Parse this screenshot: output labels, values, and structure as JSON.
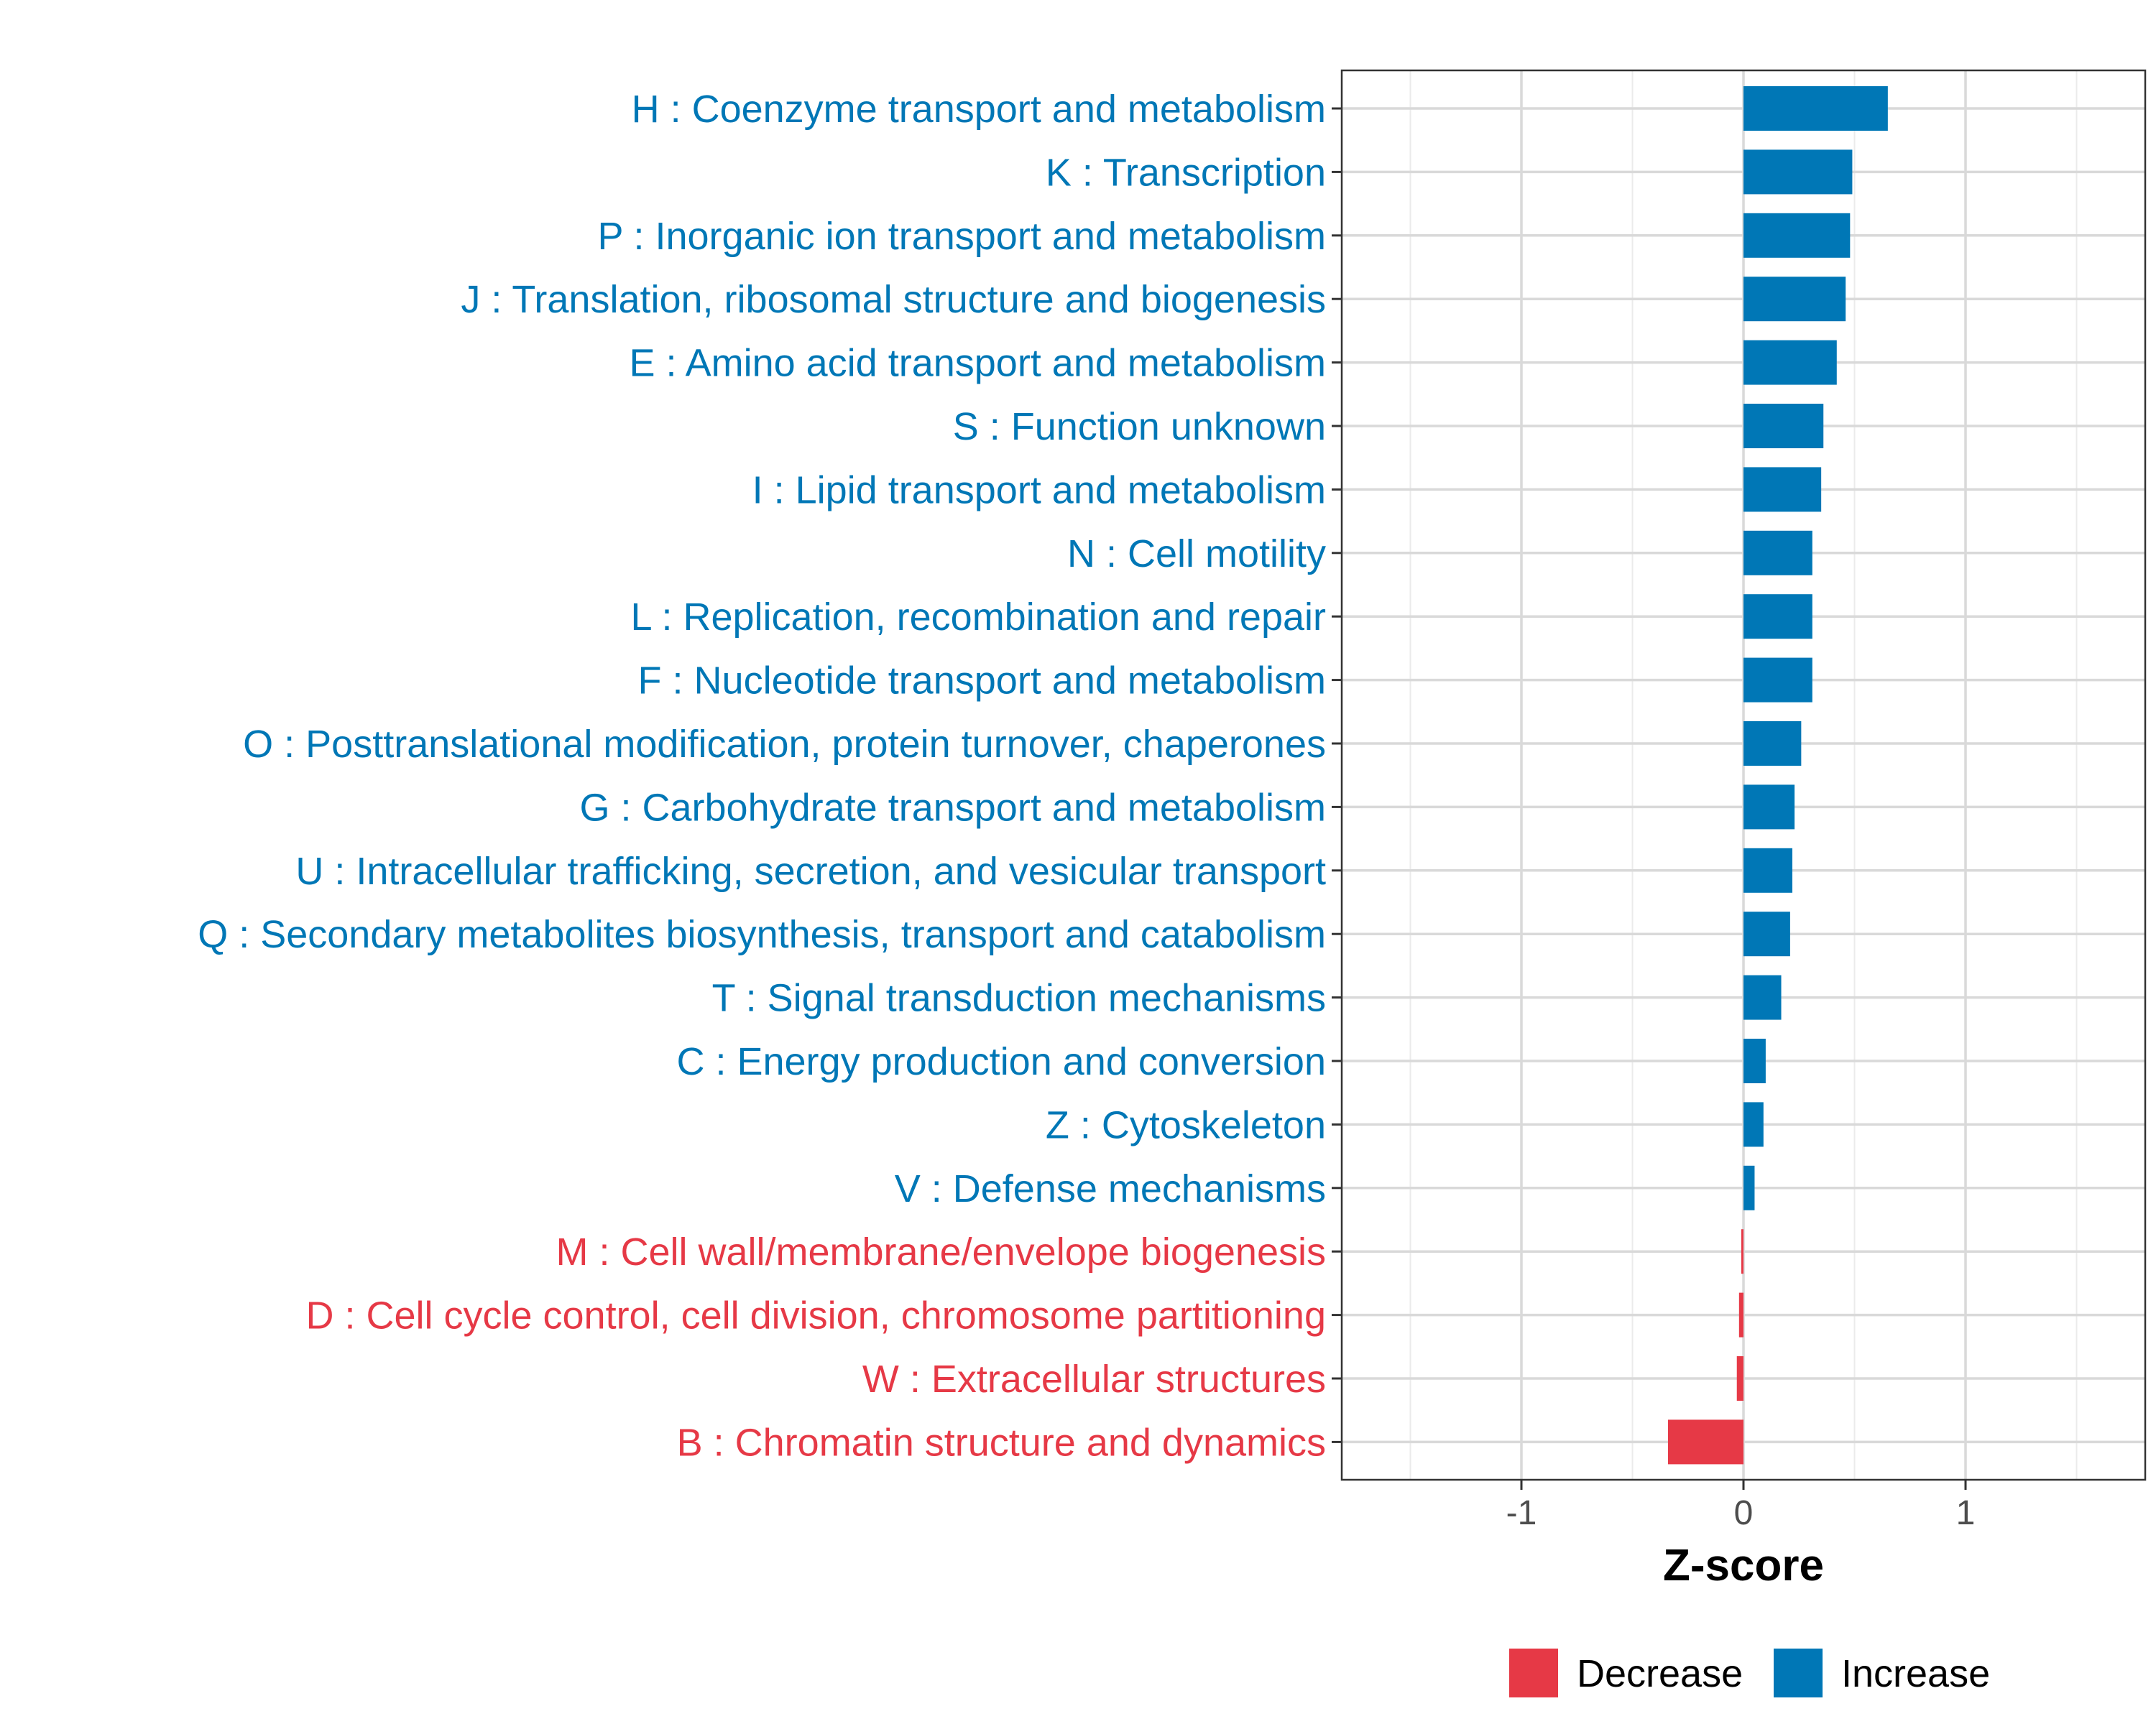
{
  "chart_data": {
    "type": "bar",
    "orientation": "horizontal",
    "title": "",
    "xlabel": "Z-score",
    "ylabel": "",
    "xlim": [
      -1.8,
      1.8
    ],
    "xticks": [
      -1,
      0,
      1
    ],
    "xtick_labels": [
      "-1",
      "0",
      "1"
    ],
    "grid": true,
    "legend_position": "bottom",
    "colors": {
      "Decrease": "#e63946",
      "Increase": "#0077b6"
    },
    "legend": [
      {
        "label": "Decrease",
        "color": "#e63946"
      },
      {
        "label": "Increase",
        "color": "#0077b6"
      }
    ],
    "bars": [
      {
        "category": "H : Coenzyme transport and metabolism",
        "value": 0.65,
        "direction": "Increase"
      },
      {
        "category": "K : Transcription",
        "value": 0.49,
        "direction": "Increase"
      },
      {
        "category": "P : Inorganic ion transport and metabolism",
        "value": 0.48,
        "direction": "Increase"
      },
      {
        "category": "J : Translation, ribosomal structure and biogenesis",
        "value": 0.46,
        "direction": "Increase"
      },
      {
        "category": "E : Amino acid transport and metabolism",
        "value": 0.42,
        "direction": "Increase"
      },
      {
        "category": "S : Function unknown",
        "value": 0.36,
        "direction": "Increase"
      },
      {
        "category": "I : Lipid transport and metabolism",
        "value": 0.35,
        "direction": "Increase"
      },
      {
        "category": "N : Cell motility",
        "value": 0.31,
        "direction": "Increase"
      },
      {
        "category": "L : Replication, recombination and repair",
        "value": 0.31,
        "direction": "Increase"
      },
      {
        "category": "F : Nucleotide transport and metabolism",
        "value": 0.31,
        "direction": "Increase"
      },
      {
        "category": "O : Posttranslational modification, protein turnover, chaperones",
        "value": 0.26,
        "direction": "Increase"
      },
      {
        "category": "G : Carbohydrate transport and metabolism",
        "value": 0.23,
        "direction": "Increase"
      },
      {
        "category": "U : Intracellular trafficking, secretion, and vesicular transport",
        "value": 0.22,
        "direction": "Increase"
      },
      {
        "category": "Q : Secondary metabolites biosynthesis, transport and catabolism",
        "value": 0.21,
        "direction": "Increase"
      },
      {
        "category": "T : Signal transduction mechanisms",
        "value": 0.17,
        "direction": "Increase"
      },
      {
        "category": "C : Energy production and conversion",
        "value": 0.1,
        "direction": "Increase"
      },
      {
        "category": "Z : Cytoskeleton",
        "value": 0.09,
        "direction": "Increase"
      },
      {
        "category": "V : Defense mechanisms",
        "value": 0.05,
        "direction": "Increase"
      },
      {
        "category": "M : Cell wall/membrane/envelope biogenesis",
        "value": -0.01,
        "direction": "Decrease"
      },
      {
        "category": "D : Cell cycle control, cell division, chromosome partitioning",
        "value": -0.02,
        "direction": "Decrease"
      },
      {
        "category": "W : Extracellular structures",
        "value": -0.03,
        "direction": "Decrease"
      },
      {
        "category": "B : Chromatin structure and dynamics",
        "value": -0.34,
        "direction": "Decrease"
      }
    ]
  }
}
